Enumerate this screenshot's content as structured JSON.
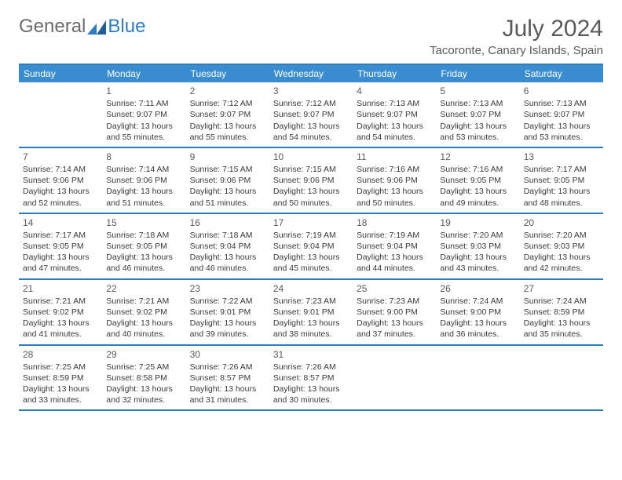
{
  "logo": {
    "text1": "General",
    "text2": "Blue",
    "mark_color": "#2e7bc0"
  },
  "title": "July 2024",
  "location": "Tacoronte, Canary Islands, Spain",
  "colors": {
    "header_bg": "#3a8cd0",
    "border": "#2e7bc0",
    "header_text": "#ffffff",
    "body_text": "#3a3a3a",
    "title_text": "#5a5a5a"
  },
  "day_headers": [
    "Sunday",
    "Monday",
    "Tuesday",
    "Wednesday",
    "Thursday",
    "Friday",
    "Saturday"
  ],
  "weeks": [
    [
      {
        "daynum": "",
        "sunrise": "",
        "sunset": "",
        "daylight1": "",
        "daylight2": ""
      },
      {
        "daynum": "1",
        "sunrise": "Sunrise: 7:11 AM",
        "sunset": "Sunset: 9:07 PM",
        "daylight1": "Daylight: 13 hours",
        "daylight2": "and 55 minutes."
      },
      {
        "daynum": "2",
        "sunrise": "Sunrise: 7:12 AM",
        "sunset": "Sunset: 9:07 PM",
        "daylight1": "Daylight: 13 hours",
        "daylight2": "and 55 minutes."
      },
      {
        "daynum": "3",
        "sunrise": "Sunrise: 7:12 AM",
        "sunset": "Sunset: 9:07 PM",
        "daylight1": "Daylight: 13 hours",
        "daylight2": "and 54 minutes."
      },
      {
        "daynum": "4",
        "sunrise": "Sunrise: 7:13 AM",
        "sunset": "Sunset: 9:07 PM",
        "daylight1": "Daylight: 13 hours",
        "daylight2": "and 54 minutes."
      },
      {
        "daynum": "5",
        "sunrise": "Sunrise: 7:13 AM",
        "sunset": "Sunset: 9:07 PM",
        "daylight1": "Daylight: 13 hours",
        "daylight2": "and 53 minutes."
      },
      {
        "daynum": "6",
        "sunrise": "Sunrise: 7:13 AM",
        "sunset": "Sunset: 9:07 PM",
        "daylight1": "Daylight: 13 hours",
        "daylight2": "and 53 minutes."
      }
    ],
    [
      {
        "daynum": "7",
        "sunrise": "Sunrise: 7:14 AM",
        "sunset": "Sunset: 9:06 PM",
        "daylight1": "Daylight: 13 hours",
        "daylight2": "and 52 minutes."
      },
      {
        "daynum": "8",
        "sunrise": "Sunrise: 7:14 AM",
        "sunset": "Sunset: 9:06 PM",
        "daylight1": "Daylight: 13 hours",
        "daylight2": "and 51 minutes."
      },
      {
        "daynum": "9",
        "sunrise": "Sunrise: 7:15 AM",
        "sunset": "Sunset: 9:06 PM",
        "daylight1": "Daylight: 13 hours",
        "daylight2": "and 51 minutes."
      },
      {
        "daynum": "10",
        "sunrise": "Sunrise: 7:15 AM",
        "sunset": "Sunset: 9:06 PM",
        "daylight1": "Daylight: 13 hours",
        "daylight2": "and 50 minutes."
      },
      {
        "daynum": "11",
        "sunrise": "Sunrise: 7:16 AM",
        "sunset": "Sunset: 9:06 PM",
        "daylight1": "Daylight: 13 hours",
        "daylight2": "and 50 minutes."
      },
      {
        "daynum": "12",
        "sunrise": "Sunrise: 7:16 AM",
        "sunset": "Sunset: 9:05 PM",
        "daylight1": "Daylight: 13 hours",
        "daylight2": "and 49 minutes."
      },
      {
        "daynum": "13",
        "sunrise": "Sunrise: 7:17 AM",
        "sunset": "Sunset: 9:05 PM",
        "daylight1": "Daylight: 13 hours",
        "daylight2": "and 48 minutes."
      }
    ],
    [
      {
        "daynum": "14",
        "sunrise": "Sunrise: 7:17 AM",
        "sunset": "Sunset: 9:05 PM",
        "daylight1": "Daylight: 13 hours",
        "daylight2": "and 47 minutes."
      },
      {
        "daynum": "15",
        "sunrise": "Sunrise: 7:18 AM",
        "sunset": "Sunset: 9:05 PM",
        "daylight1": "Daylight: 13 hours",
        "daylight2": "and 46 minutes."
      },
      {
        "daynum": "16",
        "sunrise": "Sunrise: 7:18 AM",
        "sunset": "Sunset: 9:04 PM",
        "daylight1": "Daylight: 13 hours",
        "daylight2": "and 46 minutes."
      },
      {
        "daynum": "17",
        "sunrise": "Sunrise: 7:19 AM",
        "sunset": "Sunset: 9:04 PM",
        "daylight1": "Daylight: 13 hours",
        "daylight2": "and 45 minutes."
      },
      {
        "daynum": "18",
        "sunrise": "Sunrise: 7:19 AM",
        "sunset": "Sunset: 9:04 PM",
        "daylight1": "Daylight: 13 hours",
        "daylight2": "and 44 minutes."
      },
      {
        "daynum": "19",
        "sunrise": "Sunrise: 7:20 AM",
        "sunset": "Sunset: 9:03 PM",
        "daylight1": "Daylight: 13 hours",
        "daylight2": "and 43 minutes."
      },
      {
        "daynum": "20",
        "sunrise": "Sunrise: 7:20 AM",
        "sunset": "Sunset: 9:03 PM",
        "daylight1": "Daylight: 13 hours",
        "daylight2": "and 42 minutes."
      }
    ],
    [
      {
        "daynum": "21",
        "sunrise": "Sunrise: 7:21 AM",
        "sunset": "Sunset: 9:02 PM",
        "daylight1": "Daylight: 13 hours",
        "daylight2": "and 41 minutes."
      },
      {
        "daynum": "22",
        "sunrise": "Sunrise: 7:21 AM",
        "sunset": "Sunset: 9:02 PM",
        "daylight1": "Daylight: 13 hours",
        "daylight2": "and 40 minutes."
      },
      {
        "daynum": "23",
        "sunrise": "Sunrise: 7:22 AM",
        "sunset": "Sunset: 9:01 PM",
        "daylight1": "Daylight: 13 hours",
        "daylight2": "and 39 minutes."
      },
      {
        "daynum": "24",
        "sunrise": "Sunrise: 7:23 AM",
        "sunset": "Sunset: 9:01 PM",
        "daylight1": "Daylight: 13 hours",
        "daylight2": "and 38 minutes."
      },
      {
        "daynum": "25",
        "sunrise": "Sunrise: 7:23 AM",
        "sunset": "Sunset: 9:00 PM",
        "daylight1": "Daylight: 13 hours",
        "daylight2": "and 37 minutes."
      },
      {
        "daynum": "26",
        "sunrise": "Sunrise: 7:24 AM",
        "sunset": "Sunset: 9:00 PM",
        "daylight1": "Daylight: 13 hours",
        "daylight2": "and 36 minutes."
      },
      {
        "daynum": "27",
        "sunrise": "Sunrise: 7:24 AM",
        "sunset": "Sunset: 8:59 PM",
        "daylight1": "Daylight: 13 hours",
        "daylight2": "and 35 minutes."
      }
    ],
    [
      {
        "daynum": "28",
        "sunrise": "Sunrise: 7:25 AM",
        "sunset": "Sunset: 8:59 PM",
        "daylight1": "Daylight: 13 hours",
        "daylight2": "and 33 minutes."
      },
      {
        "daynum": "29",
        "sunrise": "Sunrise: 7:25 AM",
        "sunset": "Sunset: 8:58 PM",
        "daylight1": "Daylight: 13 hours",
        "daylight2": "and 32 minutes."
      },
      {
        "daynum": "30",
        "sunrise": "Sunrise: 7:26 AM",
        "sunset": "Sunset: 8:57 PM",
        "daylight1": "Daylight: 13 hours",
        "daylight2": "and 31 minutes."
      },
      {
        "daynum": "31",
        "sunrise": "Sunrise: 7:26 AM",
        "sunset": "Sunset: 8:57 PM",
        "daylight1": "Daylight: 13 hours",
        "daylight2": "and 30 minutes."
      },
      {
        "daynum": "",
        "sunrise": "",
        "sunset": "",
        "daylight1": "",
        "daylight2": ""
      },
      {
        "daynum": "",
        "sunrise": "",
        "sunset": "",
        "daylight1": "",
        "daylight2": ""
      },
      {
        "daynum": "",
        "sunrise": "",
        "sunset": "",
        "daylight1": "",
        "daylight2": ""
      }
    ]
  ]
}
